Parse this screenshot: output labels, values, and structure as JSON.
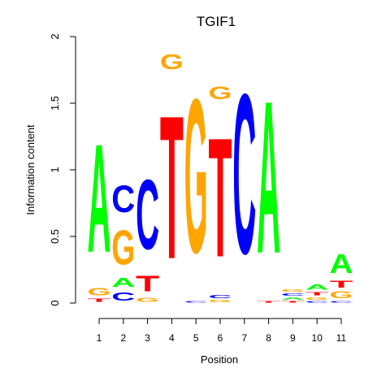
{
  "chart_data": {
    "type": "sequence-logo",
    "title": "TGIF1",
    "xlabel": "Position",
    "ylabel": "Information content",
    "ylim": [
      0,
      2
    ],
    "yticks": [
      {
        "value": 0,
        "label": "0"
      },
      {
        "value": 0.5,
        "label": "0.5"
      },
      {
        "value": 1,
        "label": "1"
      },
      {
        "value": 1.5,
        "label": "1.5"
      },
      {
        "value": 2,
        "label": "2"
      }
    ],
    "positions": [
      "1",
      "2",
      "3",
      "4",
      "5",
      "6",
      "7",
      "8",
      "9",
      "10",
      "11"
    ],
    "colors": {
      "A": "#00ff00",
      "C": "#0000ff",
      "G": "#ffa500",
      "T": "#ff0000"
    },
    "stacks": [
      [
        {
          "letter": "T",
          "height": 0.04
        },
        {
          "letter": "G",
          "height": 0.09
        },
        {
          "letter": "A",
          "height": 1.3
        }
      ],
      [
        {
          "letter": "C",
          "height": 0.1
        },
        {
          "letter": "A",
          "height": 0.11
        },
        {
          "letter": "G",
          "height": 0.41
        },
        {
          "letter": "C",
          "height": 0.32
        }
      ],
      [
        {
          "letter": "G",
          "height": 0.05
        },
        {
          "letter": "T",
          "height": 0.19
        },
        {
          "letter": "C",
          "height": 0.84
        }
      ],
      [
        {
          "letter": "T",
          "height": 1.72
        },
        {
          "letter": "G",
          "height": 0.18
        }
      ],
      [
        {
          "letter": "C",
          "height": 0.02
        },
        {
          "letter": "G",
          "height": 1.85
        }
      ],
      [
        {
          "letter": "G",
          "height": 0.03
        },
        {
          "letter": "C",
          "height": 0.04
        },
        {
          "letter": "T",
          "height": 1.43
        },
        {
          "letter": "G",
          "height": 0.15
        }
      ],
      [
        {
          "letter": "C",
          "height": 1.92
        }
      ],
      [
        {
          "letter": "T",
          "height": 0.02
        },
        {
          "letter": "A",
          "height": 1.83
        }
      ],
      [
        {
          "letter": "T",
          "height": 0.02
        },
        {
          "letter": "A",
          "height": 0.03
        },
        {
          "letter": "C",
          "height": 0.03
        },
        {
          "letter": "G",
          "height": 0.03
        }
      ],
      [
        {
          "letter": "C",
          "height": 0.02
        },
        {
          "letter": "G",
          "height": 0.03
        },
        {
          "letter": "T",
          "height": 0.04
        },
        {
          "letter": "A",
          "height": 0.06
        }
      ],
      [
        {
          "letter": "C",
          "height": 0.02
        },
        {
          "letter": "G",
          "height": 0.08
        },
        {
          "letter": "T",
          "height": 0.08
        },
        {
          "letter": "A",
          "height": 0.23
        }
      ]
    ]
  }
}
